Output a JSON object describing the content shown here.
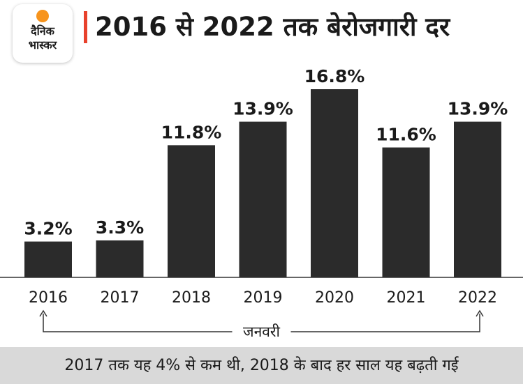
{
  "logo": {
    "line1": "दैनिक",
    "line2": "भास्कर"
  },
  "header": {
    "title": "2016 से 2022 तक बेरोजगारी दर"
  },
  "chart_data": {
    "type": "bar",
    "title": "2016 से 2022 तक बेरोजगारी दर",
    "categories": [
      "2016",
      "2017",
      "2018",
      "2019",
      "2020",
      "2021",
      "2022"
    ],
    "values": [
      3.2,
      3.3,
      11.8,
      13.9,
      16.8,
      11.6,
      13.9
    ],
    "value_labels": [
      "3.2%",
      "3.3%",
      "11.8%",
      "13.9%",
      "16.8%",
      "11.6%",
      "13.9%"
    ],
    "bar_color": "#2b2b2b",
    "xlabel": "जनवरी",
    "ylabel": "",
    "ylim": [
      0,
      16.8
    ],
    "grid": false,
    "legend": "none"
  },
  "footer": {
    "note": "2017 तक यह 4% से कम थी, 2018 के बाद हर साल यह बढ़ती गई"
  }
}
